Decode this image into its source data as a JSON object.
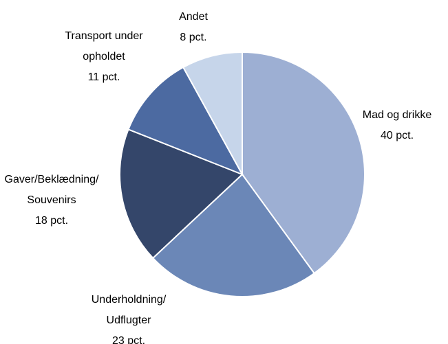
{
  "chart_data": {
    "type": "pie",
    "categories": [
      [
        "Mad og drikke"
      ],
      [
        "Underholdning/",
        "Udflugter"
      ],
      [
        "Gaver/Beklædning/",
        "Souvenirs"
      ],
      [
        "Transport under",
        "opholdet"
      ],
      [
        "Andet"
      ]
    ],
    "values": [
      40,
      23,
      18,
      11,
      8
    ],
    "value_labels": [
      "40 pct.",
      "23 pct.",
      "18 pct.",
      "11 pct.",
      "8 pct."
    ],
    "colors": [
      "#9dafd3",
      "#6b87b7",
      "#34466a",
      "#4c6aa1",
      "#c6d5ea"
    ]
  }
}
